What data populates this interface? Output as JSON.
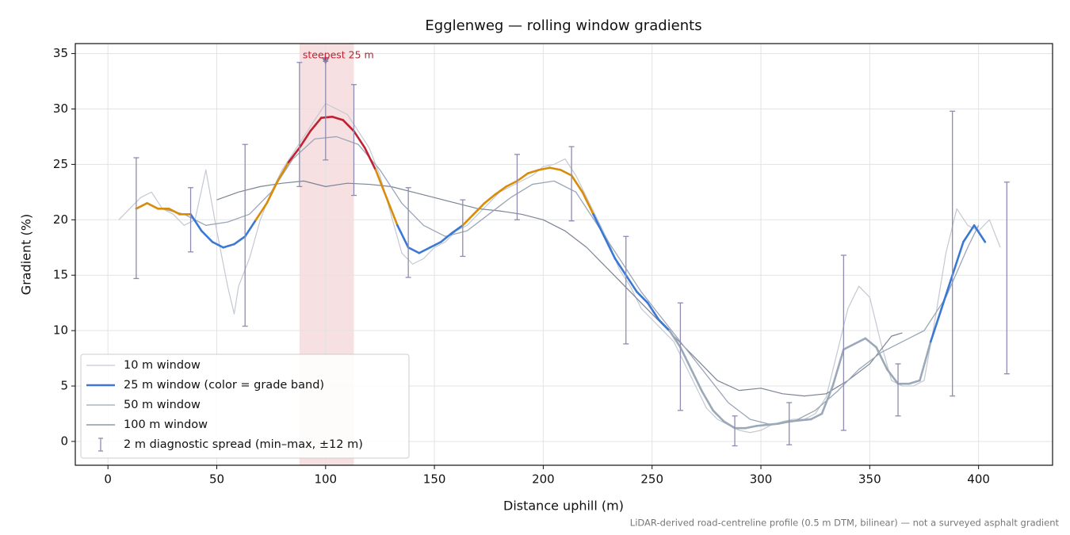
{
  "chart_data": {
    "type": "line",
    "title": "Egglenweg — rolling window gradients",
    "xlabel": "Distance uphill (m)",
    "ylabel": "Gradient (%)",
    "footnote": "LiDAR-derived road-centreline profile (0.5 m DTM, bilinear) — not a surveyed asphalt gradient",
    "xlim": [
      -15,
      434
    ],
    "ylim": [
      -2.15,
      35.9
    ],
    "xticks": [
      0,
      50,
      100,
      150,
      200,
      250,
      300,
      350,
      400
    ],
    "yticks": [
      0,
      5,
      10,
      15,
      20,
      25,
      30,
      35
    ],
    "grid": true,
    "legend": "lower left",
    "highlight": {
      "label": "steepest 25 m",
      "x_range": [
        88,
        113
      ],
      "color": "#c0202f",
      "marker": {
        "x": 100,
        "y": 34.3
      }
    },
    "series": [
      {
        "name": "10 m window",
        "color": "#c3c9d2",
        "width": 1.2,
        "x": [
          5,
          10,
          15,
          20,
          25,
          30,
          35,
          40,
          45,
          50,
          55,
          58,
          60,
          65,
          70,
          75,
          80,
          85,
          90,
          95,
          100,
          105,
          110,
          115,
          120,
          125,
          130,
          135,
          140,
          145,
          150,
          155,
          160,
          165,
          170,
          175,
          180,
          185,
          190,
          195,
          200,
          205,
          210,
          215,
          220,
          225,
          230,
          235,
          240,
          245,
          250,
          255,
          260,
          265,
          270,
          275,
          280,
          285,
          290,
          295,
          300,
          305,
          310,
          315,
          320,
          325,
          330,
          335,
          340,
          345,
          350,
          355,
          360,
          365,
          370,
          375,
          380,
          385,
          390,
          395,
          400,
          405,
          410
        ],
        "values": [
          20,
          21,
          22,
          22.5,
          21,
          20.5,
          19.5,
          20,
          24.5,
          19,
          14,
          11.5,
          14,
          16.5,
          20,
          22.5,
          24.5,
          26,
          27.5,
          29,
          30.5,
          30,
          29.5,
          28,
          26.5,
          24,
          20.5,
          17,
          16,
          16.5,
          17.5,
          18,
          19,
          19.5,
          20.5,
          21.5,
          22.5,
          23,
          23.5,
          24,
          24.8,
          25,
          25.5,
          24,
          22,
          20,
          18,
          15.5,
          14,
          12,
          11,
          10,
          9,
          7,
          5,
          3,
          2,
          1.5,
          1,
          0.8,
          1,
          1.5,
          1.8,
          2,
          2,
          2.5,
          4,
          8,
          12,
          14,
          13,
          9,
          5.5,
          5,
          5,
          5.5,
          11,
          17,
          21,
          19.5,
          19,
          20,
          17.5
        ]
      },
      {
        "name": "25 m window (color = grade band)",
        "color": "#3a78d4",
        "width": 2.6,
        "band_thresholds": [
          10,
          20,
          25
        ],
        "band_colors": [
          "#9aa8b8",
          "#3a78d4",
          "#d98c0a",
          "#c0202f"
        ],
        "x": [
          13,
          18,
          23,
          28,
          33,
          38,
          43,
          48,
          53,
          58,
          63,
          68,
          73,
          78,
          83,
          88,
          93,
          98,
          103,
          108,
          113,
          118,
          123,
          128,
          133,
          138,
          143,
          148,
          153,
          158,
          163,
          168,
          173,
          178,
          183,
          188,
          193,
          198,
          203,
          208,
          213,
          218,
          223,
          228,
          233,
          238,
          243,
          248,
          253,
          258,
          263,
          268,
          273,
          278,
          283,
          288,
          293,
          298,
          303,
          308,
          313,
          318,
          323,
          328,
          333,
          338,
          343,
          348,
          353,
          358,
          363,
          368,
          373,
          378,
          383,
          388,
          393,
          398,
          403
        ],
        "values": [
          21,
          21.5,
          21,
          21,
          20.5,
          20.5,
          19,
          18,
          17.5,
          17.8,
          18.5,
          20,
          21.5,
          23.5,
          25.2,
          26.5,
          28,
          29.2,
          29.3,
          29,
          28,
          26.5,
          24.5,
          22,
          19.5,
          17.5,
          17,
          17.5,
          18,
          18.8,
          19.5,
          20.5,
          21.5,
          22.3,
          23,
          23.5,
          24.2,
          24.5,
          24.7,
          24.5,
          24,
          22.5,
          20.5,
          18.5,
          16.5,
          15,
          13.5,
          12.5,
          11,
          10,
          8.5,
          6.5,
          4.5,
          2.8,
          1.8,
          1.2,
          1.2,
          1.4,
          1.5,
          1.6,
          1.8,
          1.9,
          2,
          2.5,
          5,
          8.3,
          8.8,
          9.3,
          8.5,
          6.5,
          5.2,
          5.2,
          5.5,
          9,
          12,
          15,
          18,
          19.5,
          18
        ]
      },
      {
        "name": "50 m window",
        "color": "#9aa6b8",
        "width": 1.3,
        "x": [
          25,
          35,
          45,
          55,
          65,
          75,
          85,
          95,
          105,
          115,
          125,
          135,
          145,
          155,
          165,
          175,
          185,
          195,
          205,
          215,
          225,
          235,
          245,
          255,
          265,
          275,
          285,
          295,
          305,
          315,
          325,
          335,
          345,
          355,
          365,
          375,
          385,
          395,
          400
        ],
        "values": [
          21,
          20.5,
          19.5,
          19.8,
          20.5,
          22.5,
          25.5,
          27.3,
          27.5,
          26.8,
          24.5,
          21.5,
          19.5,
          18.5,
          19,
          20.5,
          22,
          23.2,
          23.5,
          22.5,
          19.5,
          16.5,
          13.5,
          11,
          8.5,
          6,
          3.5,
          2,
          1.5,
          1.8,
          2.8,
          4.5,
          6.5,
          8,
          9,
          10,
          13,
          17.5,
          19.5
        ]
      },
      {
        "name": "100 m window",
        "color": "#7b8494",
        "width": 1.2,
        "x": [
          50,
          60,
          70,
          80,
          90,
          100,
          110,
          120,
          130,
          140,
          150,
          160,
          170,
          180,
          190,
          200,
          210,
          220,
          230,
          240,
          250,
          260,
          270,
          280,
          290,
          300,
          310,
          320,
          330,
          340,
          350,
          360,
          365
        ],
        "values": [
          21.8,
          22.5,
          23,
          23.3,
          23.5,
          23,
          23.3,
          23.2,
          23,
          22.5,
          22,
          21.5,
          21,
          20.8,
          20.5,
          20,
          19,
          17.5,
          15.5,
          13.5,
          11.5,
          9.5,
          7.5,
          5.5,
          4.6,
          4.8,
          4.3,
          4.1,
          4.3,
          5.5,
          7,
          9.5,
          9.8
        ]
      }
    ],
    "spread": {
      "name": "2 m diagnostic spread (min–max, ±12 m)",
      "color": "#8e8cb0",
      "x": [
        13,
        38,
        63,
        88,
        100,
        113,
        138,
        163,
        188,
        213,
        238,
        263,
        288,
        313,
        338,
        363,
        388,
        413
      ],
      "min": [
        14.7,
        17.1,
        10.4,
        23,
        25.4,
        22.2,
        14.8,
        16.7,
        20,
        19.9,
        8.8,
        2.8,
        -0.4,
        -0.3,
        1,
        2.3,
        4.1,
        6.1
      ],
      "max": [
        25.6,
        22.9,
        26.8,
        34.2,
        34.3,
        32.2,
        22.9,
        21.8,
        25.9,
        26.6,
        18.5,
        12.5,
        2.3,
        3.5,
        16.8,
        7,
        29.8,
        23.4
      ]
    }
  }
}
